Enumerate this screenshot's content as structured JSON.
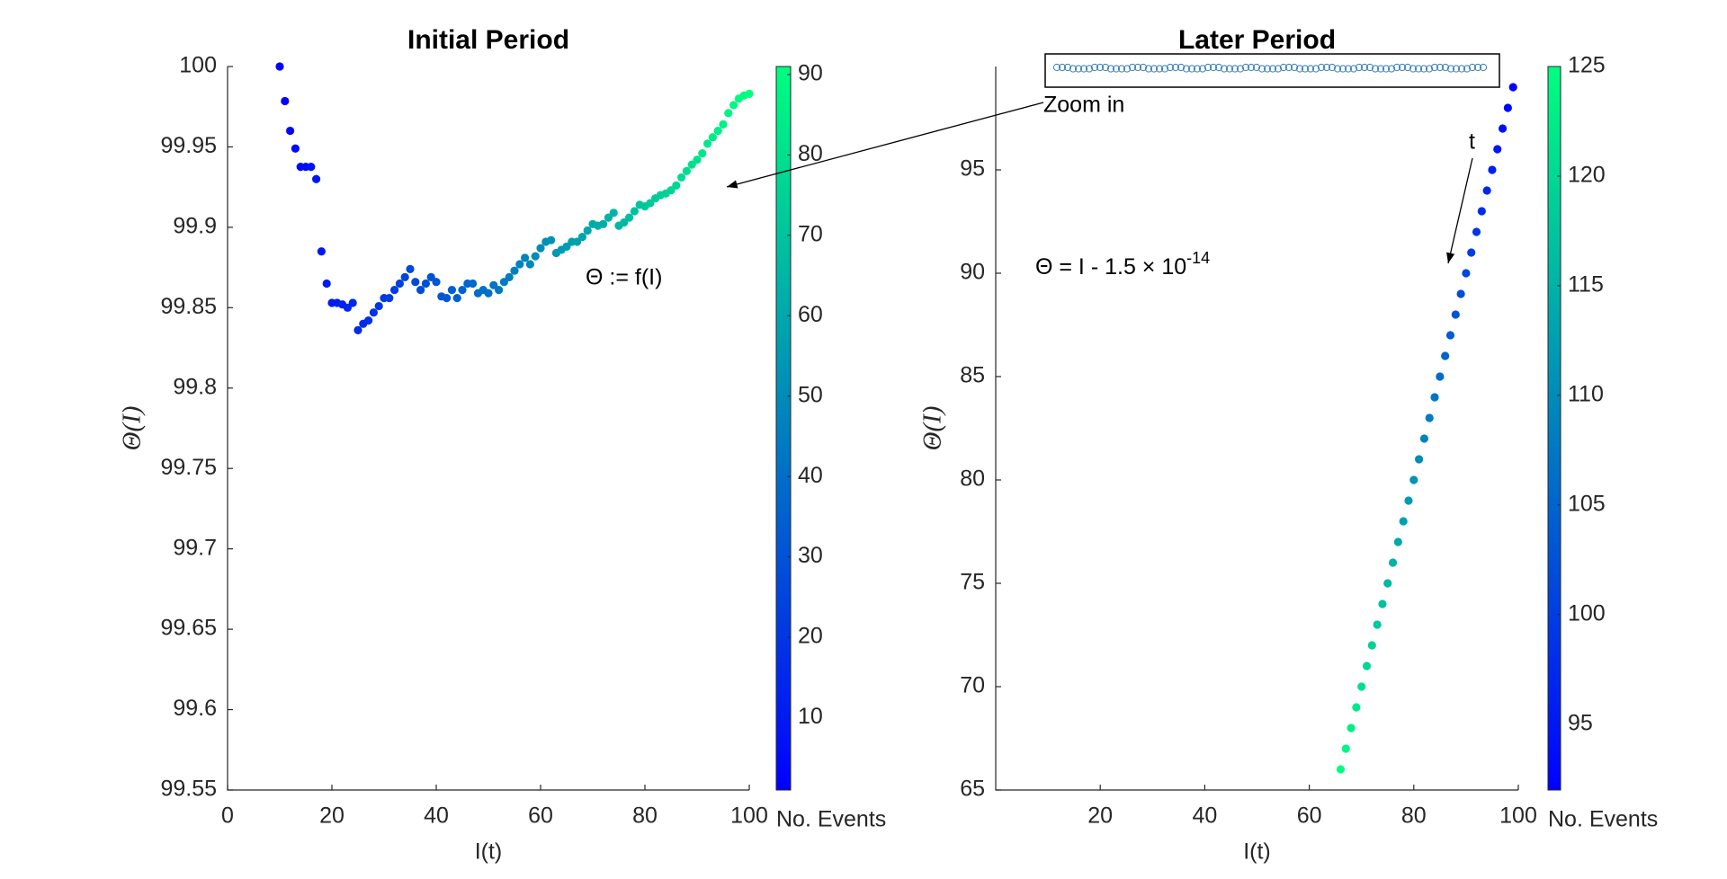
{
  "chart_data": [
    {
      "type": "scatter",
      "title": "Initial Period",
      "x_label": "I(t)",
      "y_label": "Θ(I)",
      "x": [
        10,
        11,
        12,
        13,
        14,
        15,
        16,
        17,
        18,
        19,
        20,
        21,
        22,
        23,
        24,
        25,
        26,
        27,
        28,
        29,
        30,
        31,
        32,
        33,
        34,
        35,
        36,
        37,
        38,
        39,
        40,
        41,
        42,
        43,
        44,
        45,
        46,
        47,
        48,
        49,
        50,
        51,
        52,
        53,
        54,
        55,
        56,
        57,
        58,
        59,
        60,
        61,
        62,
        63,
        64,
        65,
        66,
        67,
        68,
        69,
        70,
        71,
        72,
        73,
        74,
        75,
        76,
        77,
        78,
        79,
        80,
        81,
        82,
        83,
        84,
        85,
        86,
        87,
        88,
        89,
        90,
        91,
        92,
        93,
        94,
        95,
        96,
        97,
        98,
        99,
        100
      ],
      "values": [
        100,
        99.9785,
        99.96,
        99.949,
        99.9376,
        99.9376,
        99.9376,
        99.93,
        99.885,
        99.865,
        99.853,
        99.853,
        99.852,
        99.85,
        99.853,
        99.836,
        99.84,
        99.842,
        99.847,
        99.851,
        99.856,
        99.856,
        99.861,
        99.865,
        99.869,
        99.874,
        99.866,
        99.861,
        99.865,
        99.869,
        99.866,
        99.857,
        99.856,
        99.861,
        99.856,
        99.861,
        99.865,
        99.865,
        99.859,
        99.861,
        99.859,
        99.864,
        99.861,
        99.866,
        99.869,
        99.873,
        99.877,
        99.881,
        99.877,
        99.882,
        99.887,
        99.891,
        99.892,
        99.884,
        99.886,
        99.888,
        99.891,
        99.891,
        99.894,
        99.898,
        99.902,
        99.901,
        99.902,
        99.906,
        99.909,
        99.901,
        99.903,
        99.906,
        99.91,
        99.914,
        99.913,
        99.915,
        99.918,
        99.92,
        99.921,
        99.923,
        99.926,
        99.931,
        99.935,
        99.939,
        99.942,
        99.946,
        99.952,
        99.956,
        99.96,
        99.964,
        99.971,
        99.976,
        99.98,
        99.982,
        99.983
      ],
      "color_values": [
        1,
        2,
        3,
        4,
        5,
        6,
        7,
        8,
        9,
        10,
        11,
        12,
        13,
        14,
        15,
        16,
        17,
        18,
        19,
        20,
        21,
        22,
        23,
        24,
        25,
        26,
        27,
        28,
        29,
        30,
        31,
        32,
        33,
        34,
        35,
        36,
        37,
        38,
        39,
        40,
        41,
        42,
        43,
        44,
        45,
        46,
        47,
        48,
        49,
        50,
        51,
        52,
        53,
        54,
        55,
        56,
        57,
        58,
        59,
        60,
        61,
        62,
        63,
        64,
        65,
        66,
        67,
        68,
        69,
        70,
        71,
        72,
        73,
        74,
        75,
        76,
        77,
        78,
        79,
        80,
        81,
        82,
        83,
        84,
        85,
        86,
        87,
        88,
        89,
        90,
        91
      ],
      "colormap": "winter",
      "xlim": [
        0,
        100
      ],
      "xticks": [
        0,
        20,
        40,
        60,
        80,
        100
      ],
      "ylim": [
        99.55,
        100
      ],
      "yticks": [
        99.55,
        99.6,
        99.65,
        99.7,
        99.75,
        99.8,
        99.85,
        99.9,
        99.95,
        100
      ],
      "clim": [
        1,
        91
      ],
      "cticks": [
        10,
        20,
        30,
        40,
        50,
        60,
        70,
        80,
        90
      ],
      "colorbar_label": "No. Events",
      "annotations": [
        {
          "text": "Θ := f(I)"
        }
      ]
    },
    {
      "type": "scatter",
      "title": "Later Period",
      "x_label": "I(t)",
      "y_label": "Θ(I)",
      "x": [
        66,
        67,
        68,
        69,
        70,
        71,
        72,
        73,
        74,
        75,
        76,
        77,
        78,
        79,
        80,
        81,
        82,
        83,
        84,
        85,
        86,
        87,
        88,
        89,
        90,
        91,
        92,
        93,
        94,
        95,
        96,
        97,
        98,
        99
      ],
      "values": [
        66,
        67,
        68,
        69,
        70,
        71,
        72,
        73,
        74,
        75,
        76,
        77,
        78,
        79,
        80,
        81,
        82,
        83,
        84,
        85,
        86,
        87,
        88,
        89,
        90,
        91,
        92,
        93,
        94,
        95,
        96,
        97,
        98,
        99
      ],
      "color_values": [
        125,
        124,
        123,
        122,
        121,
        120,
        119,
        118,
        117,
        116,
        115,
        114,
        113,
        112,
        111,
        110,
        109,
        108,
        107,
        106,
        105,
        104,
        103,
        102,
        101,
        100,
        99,
        98,
        97,
        96,
        95,
        94,
        93,
        92
      ],
      "colormap": "winter",
      "xlim": [
        0,
        100
      ],
      "xticks": [
        20,
        40,
        60,
        80,
        100
      ],
      "ylim": [
        65,
        100
      ],
      "yticks": [
        65,
        70,
        75,
        80,
        85,
        90,
        95
      ],
      "clim": [
        92,
        125
      ],
      "cticks": [
        95,
        100,
        105,
        110,
        115,
        120,
        125
      ],
      "colorbar_label": "No. Events",
      "annotations": [
        {
          "text": "Zoom in"
        },
        {
          "text": "Θ = I - 1.5 × 10",
          "superscript": "-14"
        },
        {
          "text": "t"
        }
      ]
    }
  ]
}
